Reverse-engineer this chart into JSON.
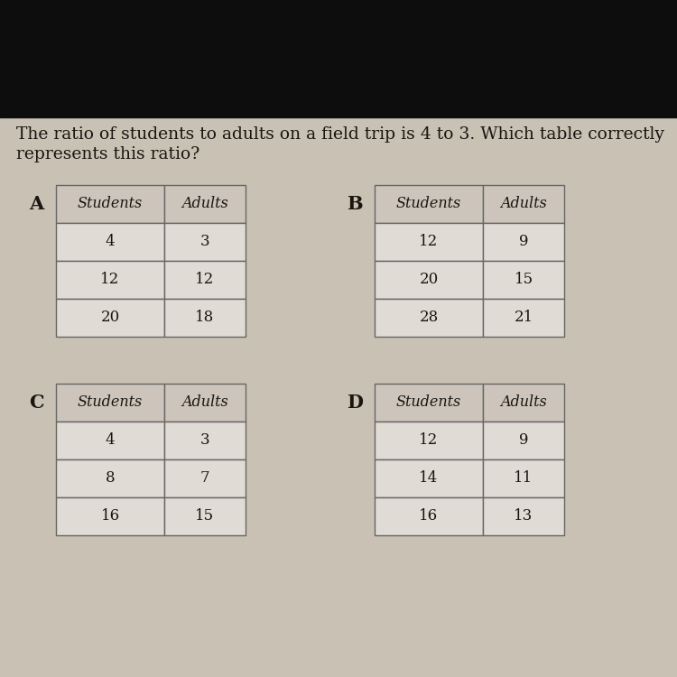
{
  "question_line1": "The ratio of students to adults on a field trip is 4 to 3. Which table correctly",
  "question_line2": "represents this ratio?",
  "background_color": "#c9c1b4",
  "top_bar_color": "#0d0d0d",
  "question_fontsize": 13.5,
  "tables": [
    {
      "label": "A",
      "headers": [
        "Students",
        "Adults"
      ],
      "rows": [
        [
          "4",
          "3"
        ],
        [
          "12",
          "12"
        ],
        [
          "20",
          "18"
        ]
      ]
    },
    {
      "label": "B",
      "headers": [
        "Students",
        "Adults"
      ],
      "rows": [
        [
          "12",
          "9"
        ],
        [
          "20",
          "15"
        ],
        [
          "28",
          "21"
        ]
      ]
    },
    {
      "label": "C",
      "headers": [
        "Students",
        "Adults"
      ],
      "rows": [
        [
          "4",
          "3"
        ],
        [
          "8",
          "7"
        ],
        [
          "16",
          "15"
        ]
      ]
    },
    {
      "label": "D",
      "headers": [
        "Students",
        "Adults"
      ],
      "rows": [
        [
          "12",
          "9"
        ],
        [
          "14",
          "11"
        ],
        [
          "16",
          "13"
        ]
      ]
    }
  ],
  "table_bg": "#cdc5bb",
  "cell_bg": "#e0dbd4",
  "border_color": "#666666",
  "text_color": "#1a1510",
  "label_fontsize": 15,
  "header_fontsize": 11.5,
  "cell_fontsize": 12
}
